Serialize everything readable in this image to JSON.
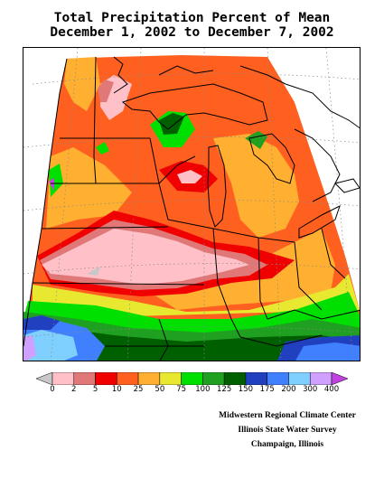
{
  "title": {
    "line1": "Total Precipitation Percent of Mean",
    "line2": "December 1, 2002 to December 7, 2002"
  },
  "legend": {
    "tick_labels": [
      "0",
      "2",
      "5",
      "10",
      "25",
      "50",
      "75",
      "100",
      "125",
      "150",
      "175",
      "200",
      "300",
      "400"
    ],
    "colors": [
      "#c8c8c8",
      "#ffc0c8",
      "#e07878",
      "#f00000",
      "#ff6020",
      "#ffb030",
      "#e8e830",
      "#00e000",
      "#20a020",
      "#006000",
      "#2040c0",
      "#4080ff",
      "#80d0ff",
      "#d0a0ff",
      "#c040e0"
    ]
  },
  "credits": {
    "line1": "Midwestern Regional Climate Center",
    "line2": "Illinois State Water Survey",
    "line3": "Champaign, Illinois"
  }
}
